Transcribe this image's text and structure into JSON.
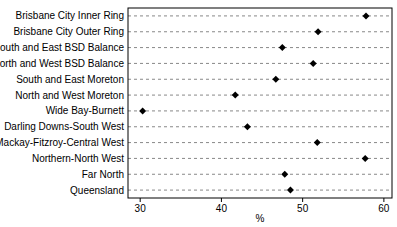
{
  "chart_data": {
    "type": "dot",
    "orientation": "horizontal",
    "x_label": "%",
    "categories": [
      "Brisbane City Inner Ring",
      "Brisbane City Outer Ring",
      "South and East BSD Balance",
      "North and West BSD Balance",
      "South and East Moreton",
      "North and West Moreton",
      "Wide Bay-Burnett",
      "Darling Downs-South West",
      "Mackay-Fitzroy-Central West",
      "Northern-North West",
      "Far North",
      "Queensland"
    ],
    "values": [
      57.8,
      51.9,
      47.5,
      51.3,
      46.7,
      41.7,
      30.3,
      43.2,
      51.8,
      57.7,
      47.8,
      48.5
    ],
    "color": "#000000",
    "xlim": [
      28.5,
      61
    ],
    "xticks": [
      30,
      40,
      50,
      60
    ],
    "grid": true,
    "marker": "diamond"
  }
}
